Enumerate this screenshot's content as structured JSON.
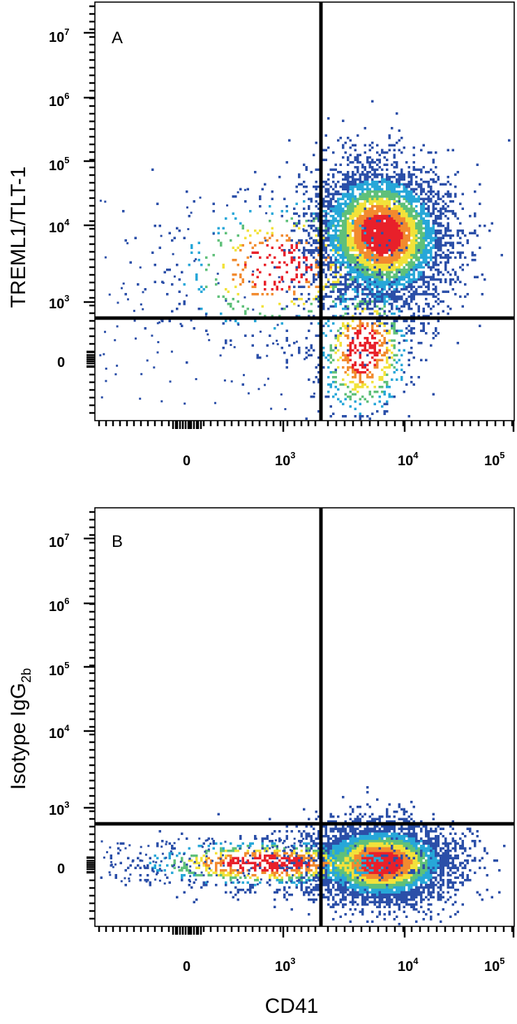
{
  "chart_data": [
    {
      "type": "scatter",
      "subtype": "flow-cytometry-density-plot",
      "panel_label": "A",
      "ylabel": "TREML1/TLT-1",
      "ylabel_sub": "",
      "xlabel": "",
      "x_scale": "biexponential",
      "y_scale": "biexponential",
      "x_ticks": [
        {
          "base": "0",
          "exp": ""
        },
        {
          "base": "10",
          "exp": "3"
        },
        {
          "base": "10",
          "exp": "4"
        },
        {
          "base": "10",
          "exp": "5"
        }
      ],
      "y_ticks": [
        {
          "base": "0",
          "exp": ""
        },
        {
          "base": "10",
          "exp": "3"
        },
        {
          "base": "10",
          "exp": "4"
        },
        {
          "base": "10",
          "exp": "5"
        },
        {
          "base": "10",
          "exp": "6"
        },
        {
          "base": "10",
          "exp": "7"
        }
      ],
      "quadrant_gate": {
        "x": 1900,
        "y": 620
      },
      "populations": [
        {
          "name": "",
          "center": {
            "x": 6000,
            "y": 8500
          },
          "density": "high"
        },
        {
          "name": "",
          "center": {
            "x": 4500,
            "y": 0
          },
          "density": "low"
        }
      ],
      "grid": false,
      "legend": "none"
    },
    {
      "type": "scatter",
      "subtype": "flow-cytometry-density-plot",
      "panel_label": "B",
      "ylabel": "Isotype IgG",
      "ylabel_sub": "2b",
      "xlabel": "CD41",
      "x_scale": "biexponential",
      "y_scale": "biexponential",
      "x_ticks": [
        {
          "base": "0",
          "exp": ""
        },
        {
          "base": "10",
          "exp": "3"
        },
        {
          "base": "10",
          "exp": "4"
        },
        {
          "base": "10",
          "exp": "5"
        }
      ],
      "y_ticks": [
        {
          "base": "0",
          "exp": ""
        },
        {
          "base": "10",
          "exp": "3"
        },
        {
          "base": "10",
          "exp": "4"
        },
        {
          "base": "10",
          "exp": "5"
        },
        {
          "base": "10",
          "exp": "6"
        },
        {
          "base": "10",
          "exp": "7"
        }
      ],
      "quadrant_gate": {
        "x": 1900,
        "y": 620
      },
      "populations": [
        {
          "name": "",
          "center": {
            "x": 6000,
            "y": 0
          },
          "density": "high"
        }
      ],
      "grid": false,
      "legend": "none"
    }
  ],
  "colors": {
    "density_low": "#2b4fa8",
    "density_mid_low": "#27a7d8",
    "density_mid": "#5fc07a",
    "density_mid_high": "#f2e23a",
    "density_high": "#e8202a",
    "axis": "#000000",
    "gate": "#000000"
  }
}
